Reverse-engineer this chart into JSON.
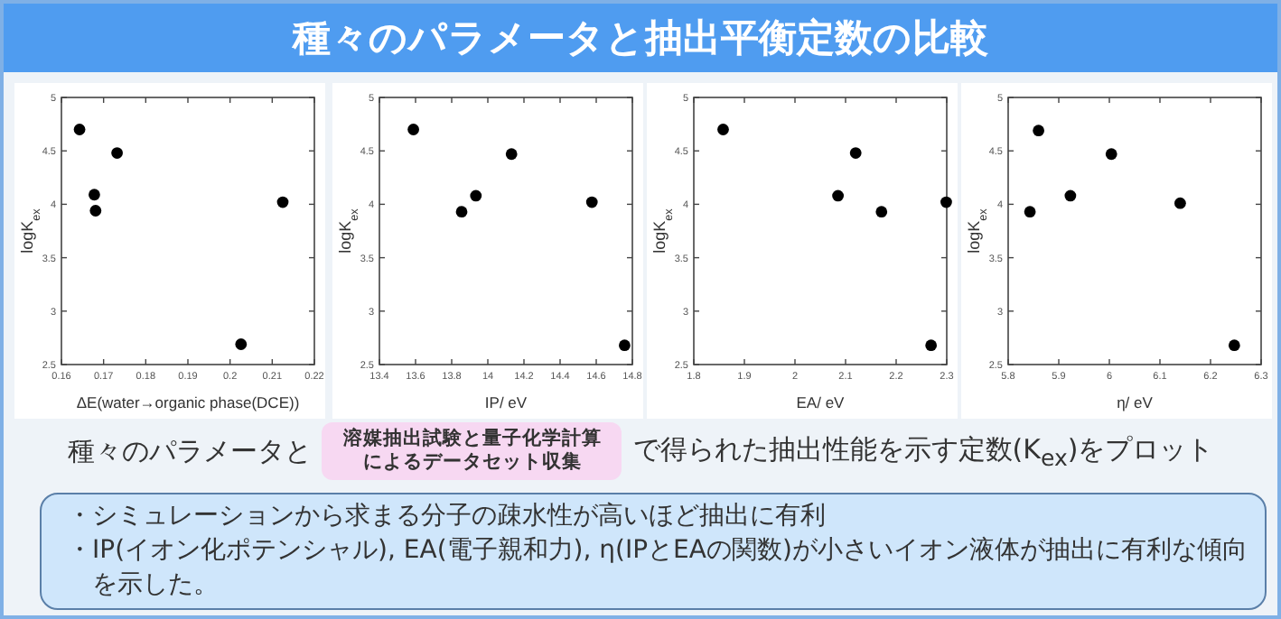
{
  "chart_data": [
    {
      "type": "scatter",
      "title": "種々のパラメータと抽出平衡定数の比較",
      "xlabel": "ΔE(water→organic phase(DCE))",
      "ylabel": "logK$_{ex}$",
      "x": [
        0.1643,
        0.1732,
        0.1678,
        0.1681,
        0.2125,
        0.2026
      ],
      "values": [
        4.7,
        4.48,
        4.09,
        3.94,
        4.02,
        2.69
      ],
      "color": "#000000",
      "marker": "circle",
      "xlim": [
        0.16,
        0.22
      ],
      "xticks": [
        0.16,
        0.17,
        0.18,
        0.19,
        0.2,
        0.21,
        0.22
      ],
      "ylim": [
        2.5,
        5
      ],
      "yticks": [
        2.5,
        3,
        3.5,
        4,
        4.5,
        5
      ],
      "grid": false,
      "annotations": [
        "種々のパラメータと",
        "溶媒抽出試験と量子化学計算によるデータセット収集",
        "で得られた抽出性能を示す定数(K$_{ex}$)をプロット",
        "・シミュレーションから求まる分子の疎水性が高いほど抽出に有利",
        "・IP(イオン化ポテンシャル), EA(電子親和力), η(IPとEAの関数)が小さいイオン液体が抽出に有利な傾向を示した。"
      ]
    },
    {
      "type": "scatter",
      "xlabel": "IP/ eV",
      "ylabel": "logK$_{ex}$",
      "x": [
        13.588,
        13.855,
        13.934,
        14.131,
        14.576,
        14.757
      ],
      "values": [
        4.7,
        3.93,
        4.08,
        4.47,
        4.02,
        2.68
      ],
      "color": "#000000",
      "marker": "circle",
      "xlim": [
        13.4,
        14.8
      ],
      "xticks": [
        13.4,
        13.6,
        13.8,
        14,
        14.2,
        14.4,
        14.6,
        14.8
      ],
      "ylim": [
        2.5,
        5
      ],
      "yticks": [
        2.5,
        3,
        3.5,
        4,
        4.5,
        5
      ],
      "grid": false
    },
    {
      "type": "scatter",
      "xlabel": "EA/ eV",
      "ylabel": "logK$_{ex}$",
      "x": [
        1.858,
        2.085,
        2.12,
        2.171,
        2.299,
        2.269
      ],
      "values": [
        4.7,
        4.08,
        4.48,
        3.93,
        4.02,
        2.68
      ],
      "color": "#000000",
      "marker": "circle",
      "xlim": [
        1.8,
        2.3
      ],
      "xticks": [
        1.8,
        1.9,
        2,
        2.1,
        2.2,
        2.3
      ],
      "ylim": [
        2.5,
        5
      ],
      "yticks": [
        2.5,
        3,
        3.5,
        4,
        4.5,
        5
      ],
      "grid": false
    },
    {
      "type": "scatter",
      "xlabel": "η/ eV",
      "ylabel": "logK$_{ex}$",
      "x": [
        5.86,
        5.843,
        5.923,
        6.004,
        6.14,
        6.247
      ],
      "values": [
        4.69,
        3.93,
        4.08,
        4.47,
        4.01,
        2.68
      ],
      "color": "#000000",
      "marker": "circle",
      "xlim": [
        5.8,
        6.3
      ],
      "xticks": [
        5.8,
        5.9,
        6,
        6.1,
        6.2,
        6.3
      ],
      "ylim": [
        2.5,
        5
      ],
      "yticks": [
        2.5,
        3,
        3.5,
        4,
        4.5,
        5
      ],
      "grid": false
    }
  ]
}
